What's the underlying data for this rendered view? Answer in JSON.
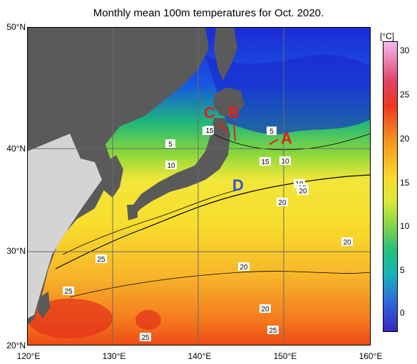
{
  "title": "Monthly mean 100m temperatures for Oct. 2020.",
  "axes": {
    "lat_labels": [
      "50°N",
      "40°N",
      "30°N",
      "20°N"
    ],
    "lon_labels": [
      "120°E",
      "130°E",
      "140°E",
      "150°E",
      "160°E"
    ]
  },
  "colorbar": {
    "unit": "[°C]",
    "ticks": [
      "30",
      "25",
      "20",
      "15",
      "10",
      "5",
      "0"
    ]
  },
  "markers": [
    {
      "label": "A",
      "color": "#e0201e"
    },
    {
      "label": "B",
      "color": "#e0201e"
    },
    {
      "label": "C",
      "color": "#e0201e"
    },
    {
      "label": "D",
      "color": "#3b4fd6"
    }
  ],
  "contour_labels": [
    "5",
    "5",
    "5",
    "10",
    "10",
    "10",
    "15",
    "15",
    "15",
    "20",
    "20",
    "20",
    "20",
    "20",
    "25",
    "25",
    "25",
    "25"
  ]
}
